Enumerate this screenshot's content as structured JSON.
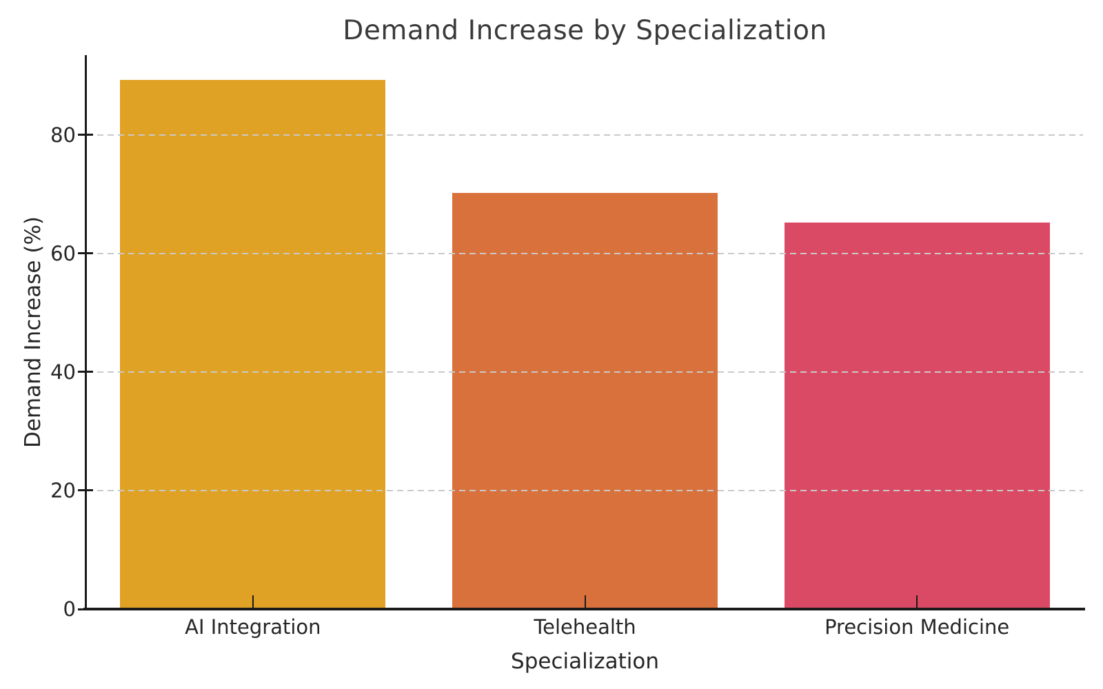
{
  "chart_data": {
    "type": "bar",
    "title": "Demand Increase by Specialization",
    "xlabel": "Specialization",
    "ylabel": "Demand Increase (%)",
    "categories": [
      "AI Integration",
      "Telehealth",
      "Precision Medicine"
    ],
    "values": [
      89,
      70,
      65
    ],
    "bar_colors": [
      "#DFA224",
      "#D9713C",
      "#DB4A64"
    ],
    "yticks": [
      0,
      20,
      40,
      60,
      80
    ],
    "ylim": [
      0,
      93.45
    ],
    "grid": {
      "axis": "y",
      "style": "dashed",
      "color": "#c9c9c9",
      "drawn_over_bars": true
    },
    "legend": null,
    "background_color": "#ffffff",
    "spine_color": "#1a1a1a",
    "text_color": "#262626",
    "spines_visible": [
      "left",
      "bottom"
    ]
  }
}
